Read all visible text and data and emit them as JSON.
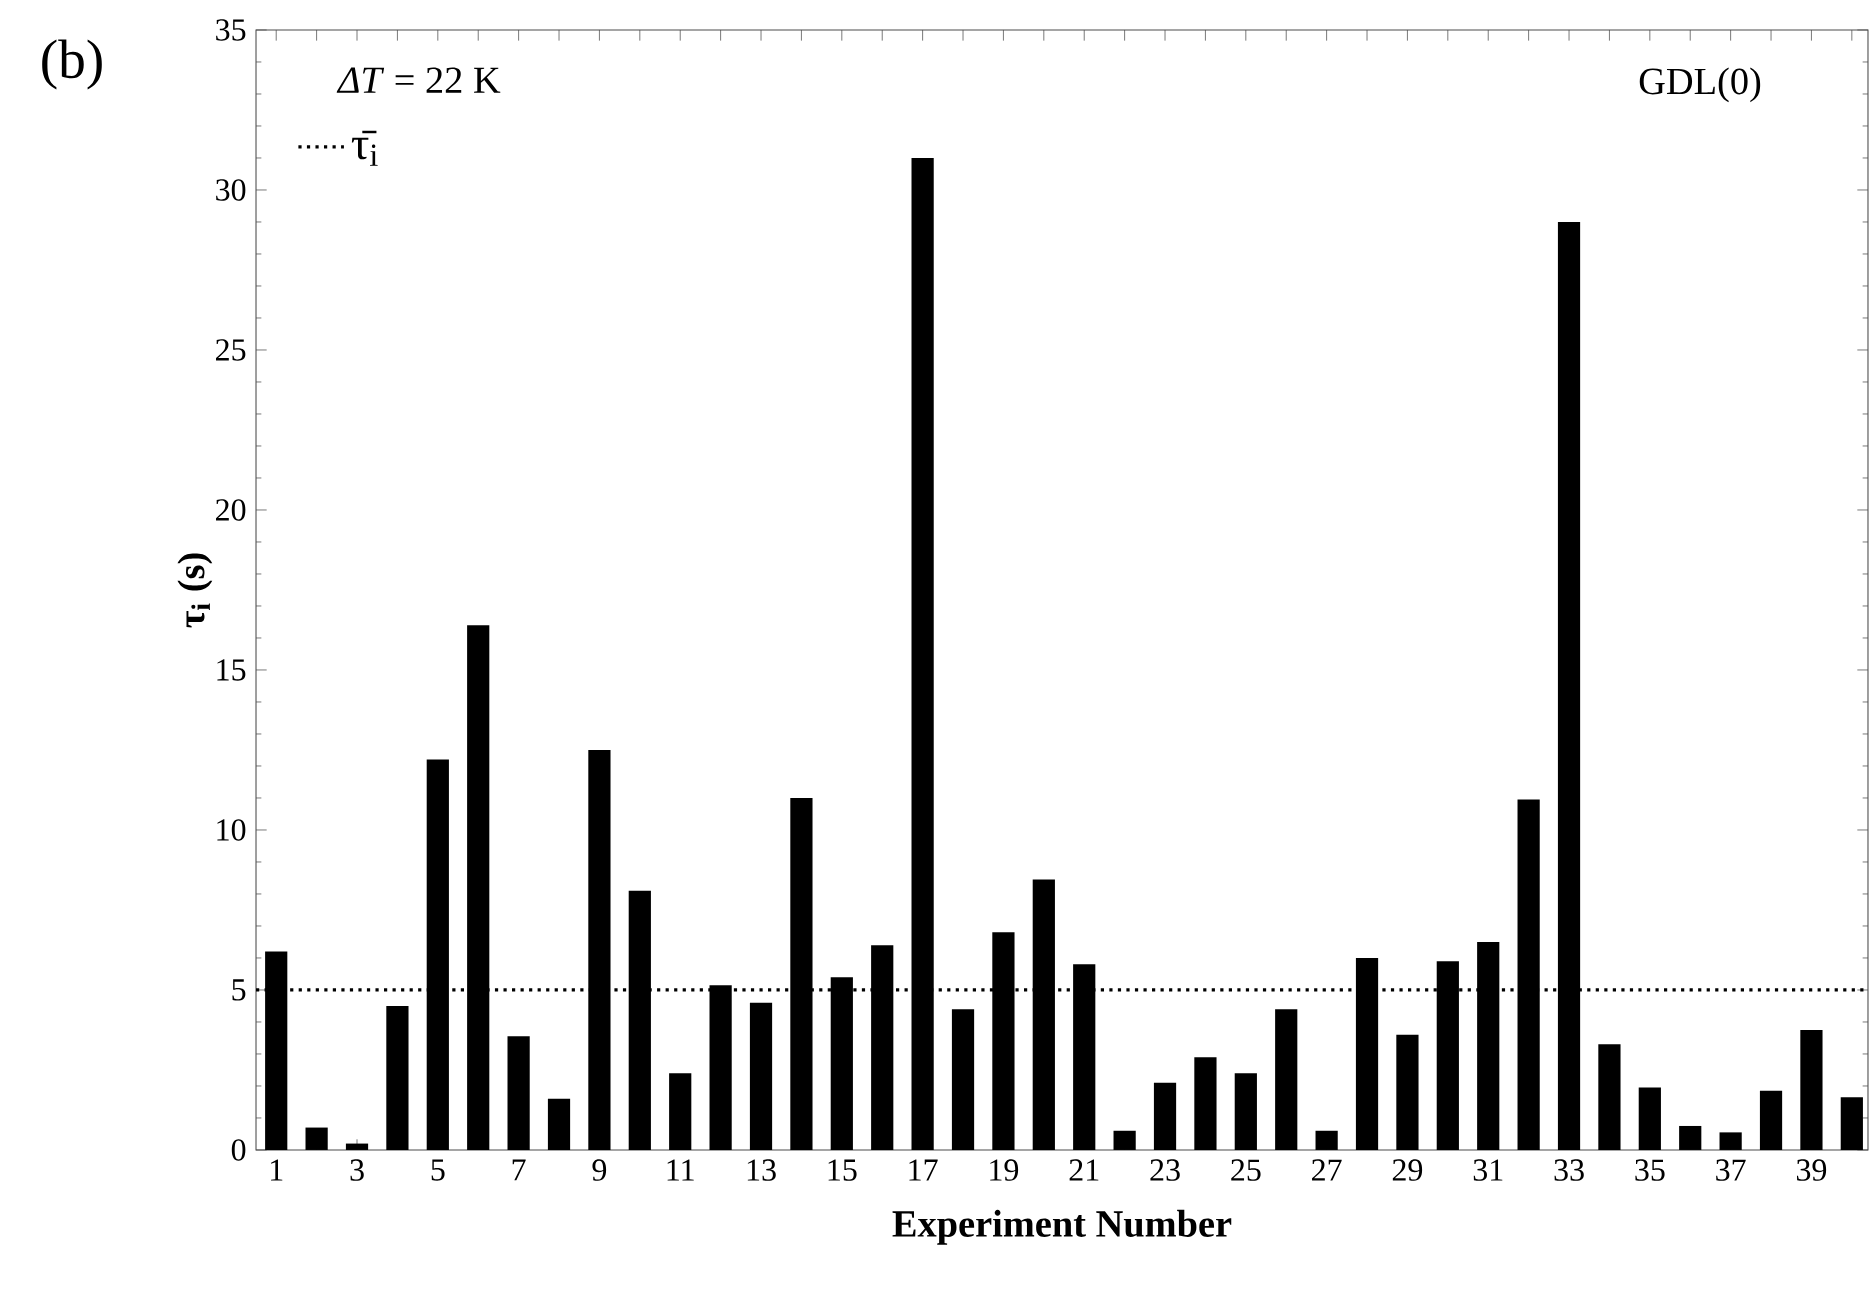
{
  "chart_data": {
    "type": "bar",
    "categories": [
      "1",
      null,
      "3",
      null,
      "5",
      null,
      "7",
      null,
      "9",
      null,
      "11",
      null,
      "13",
      null,
      "15",
      null,
      "17",
      null,
      "19",
      null,
      "21",
      null,
      "23",
      null,
      "25",
      null,
      "27",
      null,
      "29",
      null,
      "31",
      null,
      "33",
      null,
      "35",
      null,
      "37",
      null,
      "39",
      null
    ],
    "values": [
      6.2,
      0.7,
      0.2,
      4.5,
      12.2,
      16.4,
      3.55,
      1.6,
      12.5,
      8.1,
      2.4,
      5.15,
      4.6,
      11.0,
      5.4,
      6.4,
      31.0,
      4.4,
      6.8,
      8.45,
      5.8,
      0.6,
      2.1,
      2.9,
      2.4,
      4.4,
      0.6,
      6.0,
      3.6,
      5.9,
      6.5,
      10.95,
      29.0,
      3.3,
      1.95,
      0.75,
      0.55,
      1.85,
      3.75,
      1.65
    ],
    "color": "#000000",
    "ylim": [
      0,
      35
    ],
    "yticks": [
      0,
      5,
      10,
      15,
      20,
      25,
      30,
      35
    ],
    "xlabel": "Experiment Number",
    "ylabel": "τ$_{i}$ (s)",
    "annotations": [
      "(b)",
      "*ΔT* = 22 K",
      "GDL(0)"
    ],
    "ref_lines": [
      {
        "axis": "y",
        "value": 5,
        "label": "τ̄$_{i}$",
        "color": "#000000",
        "line_style": "dotted"
      }
    ],
    "legend": "top left"
  }
}
